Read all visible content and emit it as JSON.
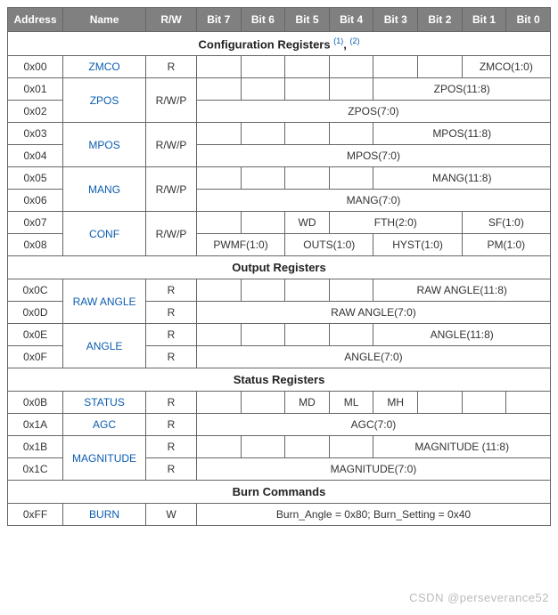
{
  "headers": {
    "address": "Address",
    "name": "Name",
    "rw": "R/W",
    "bit7": "Bit 7",
    "bit6": "Bit 6",
    "bit5": "Bit 5",
    "bit4": "Bit 4",
    "bit3": "Bit 3",
    "bit2": "Bit 2",
    "bit1": "Bit 1",
    "bit0": "Bit 0"
  },
  "sections": {
    "config": {
      "title": "Configuration Registers",
      "sup1": "(1)",
      "sep": ", ",
      "sup2": "(2)"
    },
    "output": {
      "title": "Output Registers"
    },
    "status": {
      "title": "Status Registers"
    },
    "burn": {
      "title": "Burn Commands"
    }
  },
  "rows": {
    "zmco": {
      "addr": "0x00",
      "name": "ZMCO",
      "rw": "R",
      "bits01": "ZMCO(1:0)"
    },
    "zpos_hi": {
      "addr": "0x01",
      "name": "ZPOS",
      "rw": "R/W/P",
      "bits03": "ZPOS(11:8)"
    },
    "zpos_lo": {
      "addr": "0x02",
      "bits07": "ZPOS(7:0)"
    },
    "mpos_hi": {
      "addr": "0x03",
      "name": "MPOS",
      "rw": "R/W/P",
      "bits03": "MPOS(11:8)"
    },
    "mpos_lo": {
      "addr": "0x04",
      "bits07": "MPOS(7:0)"
    },
    "mang_hi": {
      "addr": "0x05",
      "name": "MANG",
      "rw": "R/W/P",
      "bits03": "MANG(11:8)"
    },
    "mang_lo": {
      "addr": "0x06",
      "bits07": "MANG(7:0)"
    },
    "conf_hi": {
      "addr": "0x07",
      "name": "CONF",
      "rw": "R/W/P",
      "wd": "WD",
      "fth": "FTH(2:0)",
      "sf": "SF(1:0)"
    },
    "conf_lo": {
      "addr": "0x08",
      "pwmf": "PWMF(1:0)",
      "outs": "OUTS(1:0)",
      "hyst": "HYST(1:0)",
      "pm": "PM(1:0)"
    },
    "raw_hi": {
      "addr": "0x0C",
      "name": "RAW ANGLE",
      "rw": "R",
      "bits03": "RAW ANGLE(11:8)"
    },
    "raw_lo": {
      "addr": "0x0D",
      "rw": "R",
      "bits07": "RAW ANGLE(7:0)"
    },
    "angle_hi": {
      "addr": "0x0E",
      "name": "ANGLE",
      "rw": "R",
      "bits03": "ANGLE(11:8)"
    },
    "angle_lo": {
      "addr": "0x0F",
      "rw": "R",
      "bits07": "ANGLE(7:0)"
    },
    "status": {
      "addr": "0x0B",
      "name": "STATUS",
      "rw": "R",
      "md": "MD",
      "ml": "ML",
      "mh": "MH"
    },
    "agc": {
      "addr": "0x1A",
      "name": "AGC",
      "rw": "R",
      "bits07": "AGC(7:0)"
    },
    "mag_hi": {
      "addr": "0x1B",
      "name": "MAGNITUDE",
      "rw": "R",
      "bits03": "MAGNITUDE (11:8)"
    },
    "mag_lo": {
      "addr": "0x1C",
      "rw": "R",
      "bits07": "MAGNITUDE(7:0)"
    },
    "burn": {
      "addr": "0xFF",
      "name": "BURN",
      "rw": "W",
      "text": "Burn_Angle = 0x80; Burn_Setting = 0x40"
    }
  },
  "watermark": "CSDN @perseverance52"
}
